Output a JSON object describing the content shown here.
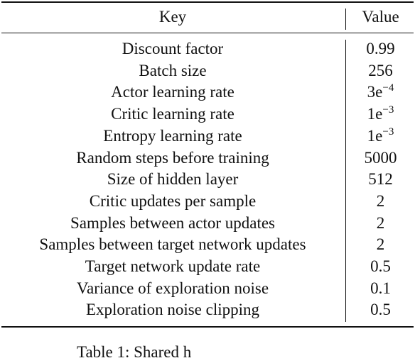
{
  "table": {
    "header": [
      "Key",
      "Value"
    ],
    "rows": [
      {
        "key": "Discount factor",
        "value": "0.99"
      },
      {
        "key": "Batch size",
        "value": "256"
      },
      {
        "key": "Actor learning rate",
        "value": "3e",
        "exponent": "−4"
      },
      {
        "key": "Critic learning rate",
        "value": "1e",
        "exponent": "−3"
      },
      {
        "key": "Entropy learning rate",
        "value": "1e",
        "exponent": "−3"
      },
      {
        "key": "Random steps before training",
        "value": "5000"
      },
      {
        "key": "Size of hidden layer",
        "value": "512"
      },
      {
        "key": "Critic updates per sample",
        "value": "2"
      },
      {
        "key": "Samples between actor updates",
        "value": "2"
      },
      {
        "key": "Samples between target network updates",
        "value": "2"
      },
      {
        "key": "Target network update rate",
        "value": "0.5"
      },
      {
        "key": "Variance of exploration noise",
        "value": "0.1"
      },
      {
        "key": "Exploration noise clipping",
        "value": "0.5"
      }
    ],
    "caption": "Table 1: Shared h"
  }
}
